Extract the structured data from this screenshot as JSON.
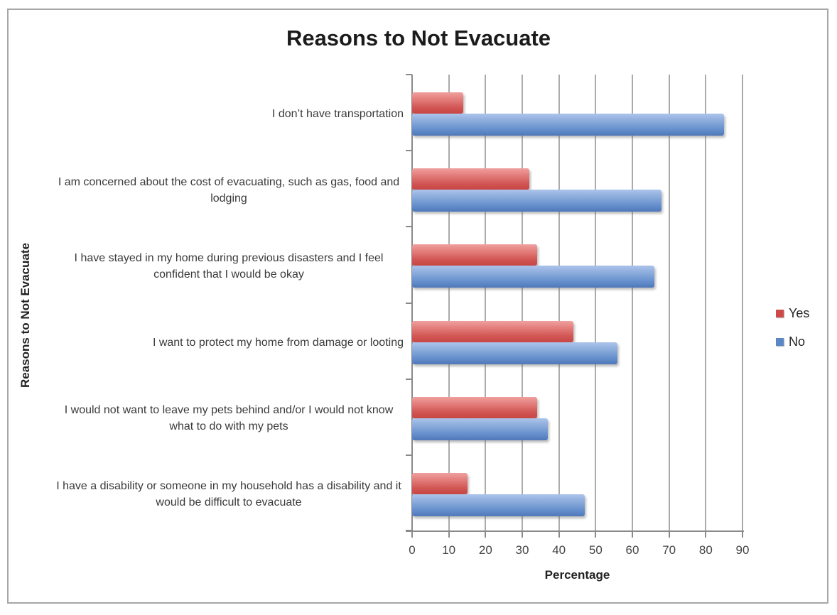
{
  "title": "Reasons to Not Evacuate",
  "x_axis_label": "Percentage",
  "y_axis_label": "Reasons to Not Evacuate",
  "colors": {
    "yes_series": "#CC4B49",
    "no_series": "#5B87C6",
    "gridline": "#ABABAB",
    "axis": "#8A8A8A",
    "frame_border": "#A6A6A6",
    "title_text": "#1B1B1B",
    "label_text": "#3A3A3A"
  },
  "chart_data": {
    "type": "bar",
    "orientation": "horizontal",
    "title": "Reasons to Not Evacuate",
    "xlabel": "Percentage",
    "ylabel": "Reasons to Not Evacuate",
    "xlim": [
      0,
      90
    ],
    "x_ticks": [
      0,
      10,
      20,
      30,
      40,
      50,
      60,
      70,
      80,
      90
    ],
    "grid": true,
    "legend_position": "right",
    "categories": [
      "I don’t have transportation",
      "I am concerned about the cost of evacuating, such as gas, food and lodging",
      "I have stayed in my home during previous disasters and I feel confident that I would be okay",
      "I want to protect my home from damage or looting",
      "I would not want to leave my pets behind and/or I would not know what to do with my pets",
      "I have a disability or someone in my household has a disability and it would be difficult to evacuate"
    ],
    "series": [
      {
        "name": "Yes",
        "color": "#CC4B49",
        "values": [
          14,
          32,
          34,
          44,
          34,
          15
        ]
      },
      {
        "name": "No",
        "color": "#5B87C6",
        "values": [
          85,
          68,
          66,
          56,
          37,
          47
        ]
      }
    ]
  }
}
